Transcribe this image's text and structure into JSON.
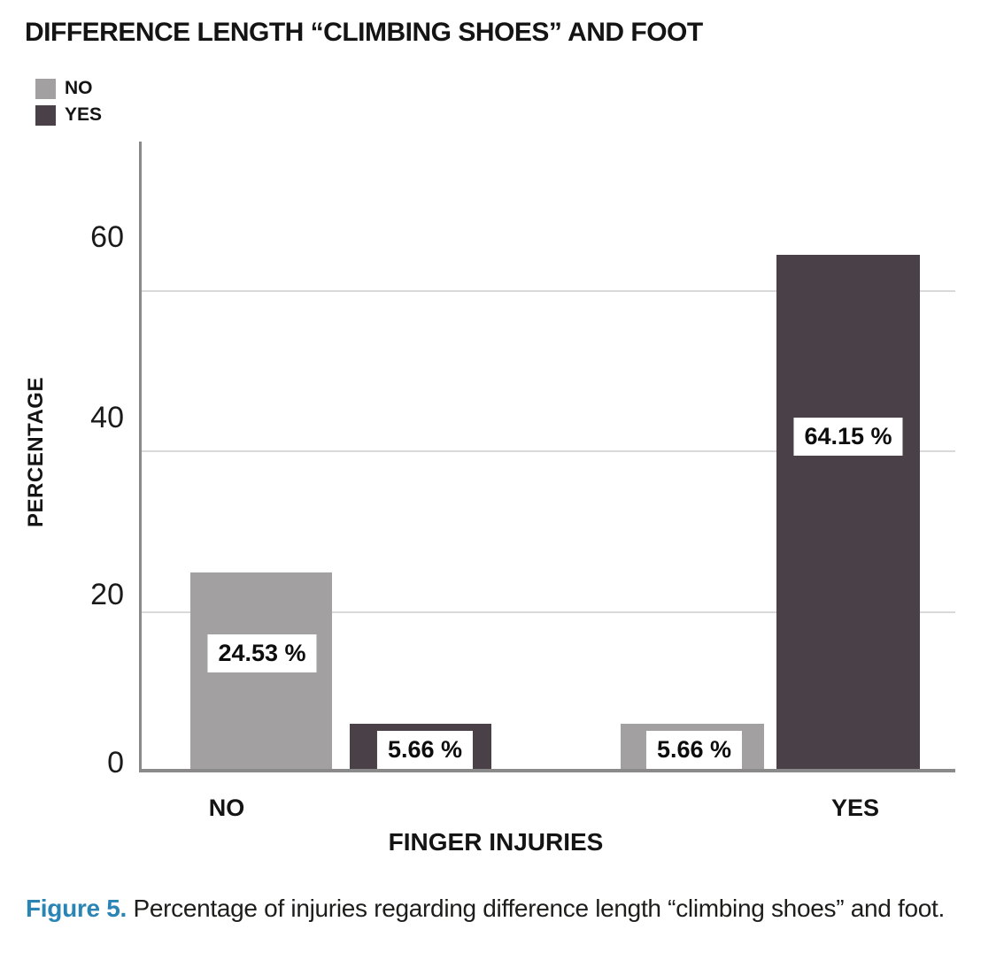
{
  "figure": {
    "title": "DIFFERENCE LENGTH “CLIMBING SHOES” AND FOOT",
    "caption_label": "Figure 5.",
    "caption_text": "Percentage of injuries regarding difference length “climbing shoes” and foot.",
    "caption_accent_color": "#2a85b5"
  },
  "legend": {
    "position": "top-left",
    "items": [
      {
        "label": "NO",
        "color": "#a3a0a2"
      },
      {
        "label": "YES",
        "color": "#4a4148"
      }
    ]
  },
  "axes": {
    "ylabel": "PERCENTAGE",
    "xlabel": "FINGER INJURIES",
    "yticks": [
      "60",
      "40",
      "20",
      "0"
    ],
    "xticks": [
      "NO",
      "YES"
    ],
    "gridline_color": "#d9d9d9",
    "axis_line_color": "#8a8a8a"
  },
  "chart_data": {
    "type": "bar",
    "title": "DIFFERENCE LENGTH “CLIMBING SHOES” AND FOOT",
    "categories": [
      "NO",
      "YES"
    ],
    "series": [
      {
        "name": "NO",
        "color": "#a3a0a2",
        "values": [
          24.53,
          5.66
        ]
      },
      {
        "name": "YES",
        "color": "#4a4148",
        "values": [
          5.66,
          64.15
        ]
      }
    ],
    "bars": [
      {
        "group": "NO",
        "series": "NO",
        "value": 24.53,
        "label": "24.53 %",
        "color": "#a3a0a2"
      },
      {
        "group": "NO",
        "series": "YES",
        "value": 5.66,
        "label": "5.66 %",
        "color": "#4a4148"
      },
      {
        "group": "YES",
        "series": "NO",
        "value": 5.66,
        "label": "5.66 %",
        "color": "#a3a0a2"
      },
      {
        "group": "YES",
        "series": "YES",
        "value": 64.15,
        "label": "64.15 %",
        "color": "#4a4148"
      }
    ],
    "xlabel": "FINGER INJURIES",
    "ylabel": "PERCENTAGE",
    "ylim": [
      0,
      78
    ],
    "yticks": [
      0,
      20,
      40,
      60
    ],
    "grid": true,
    "legend_position": "top-left",
    "value_labels_unit": "%"
  }
}
